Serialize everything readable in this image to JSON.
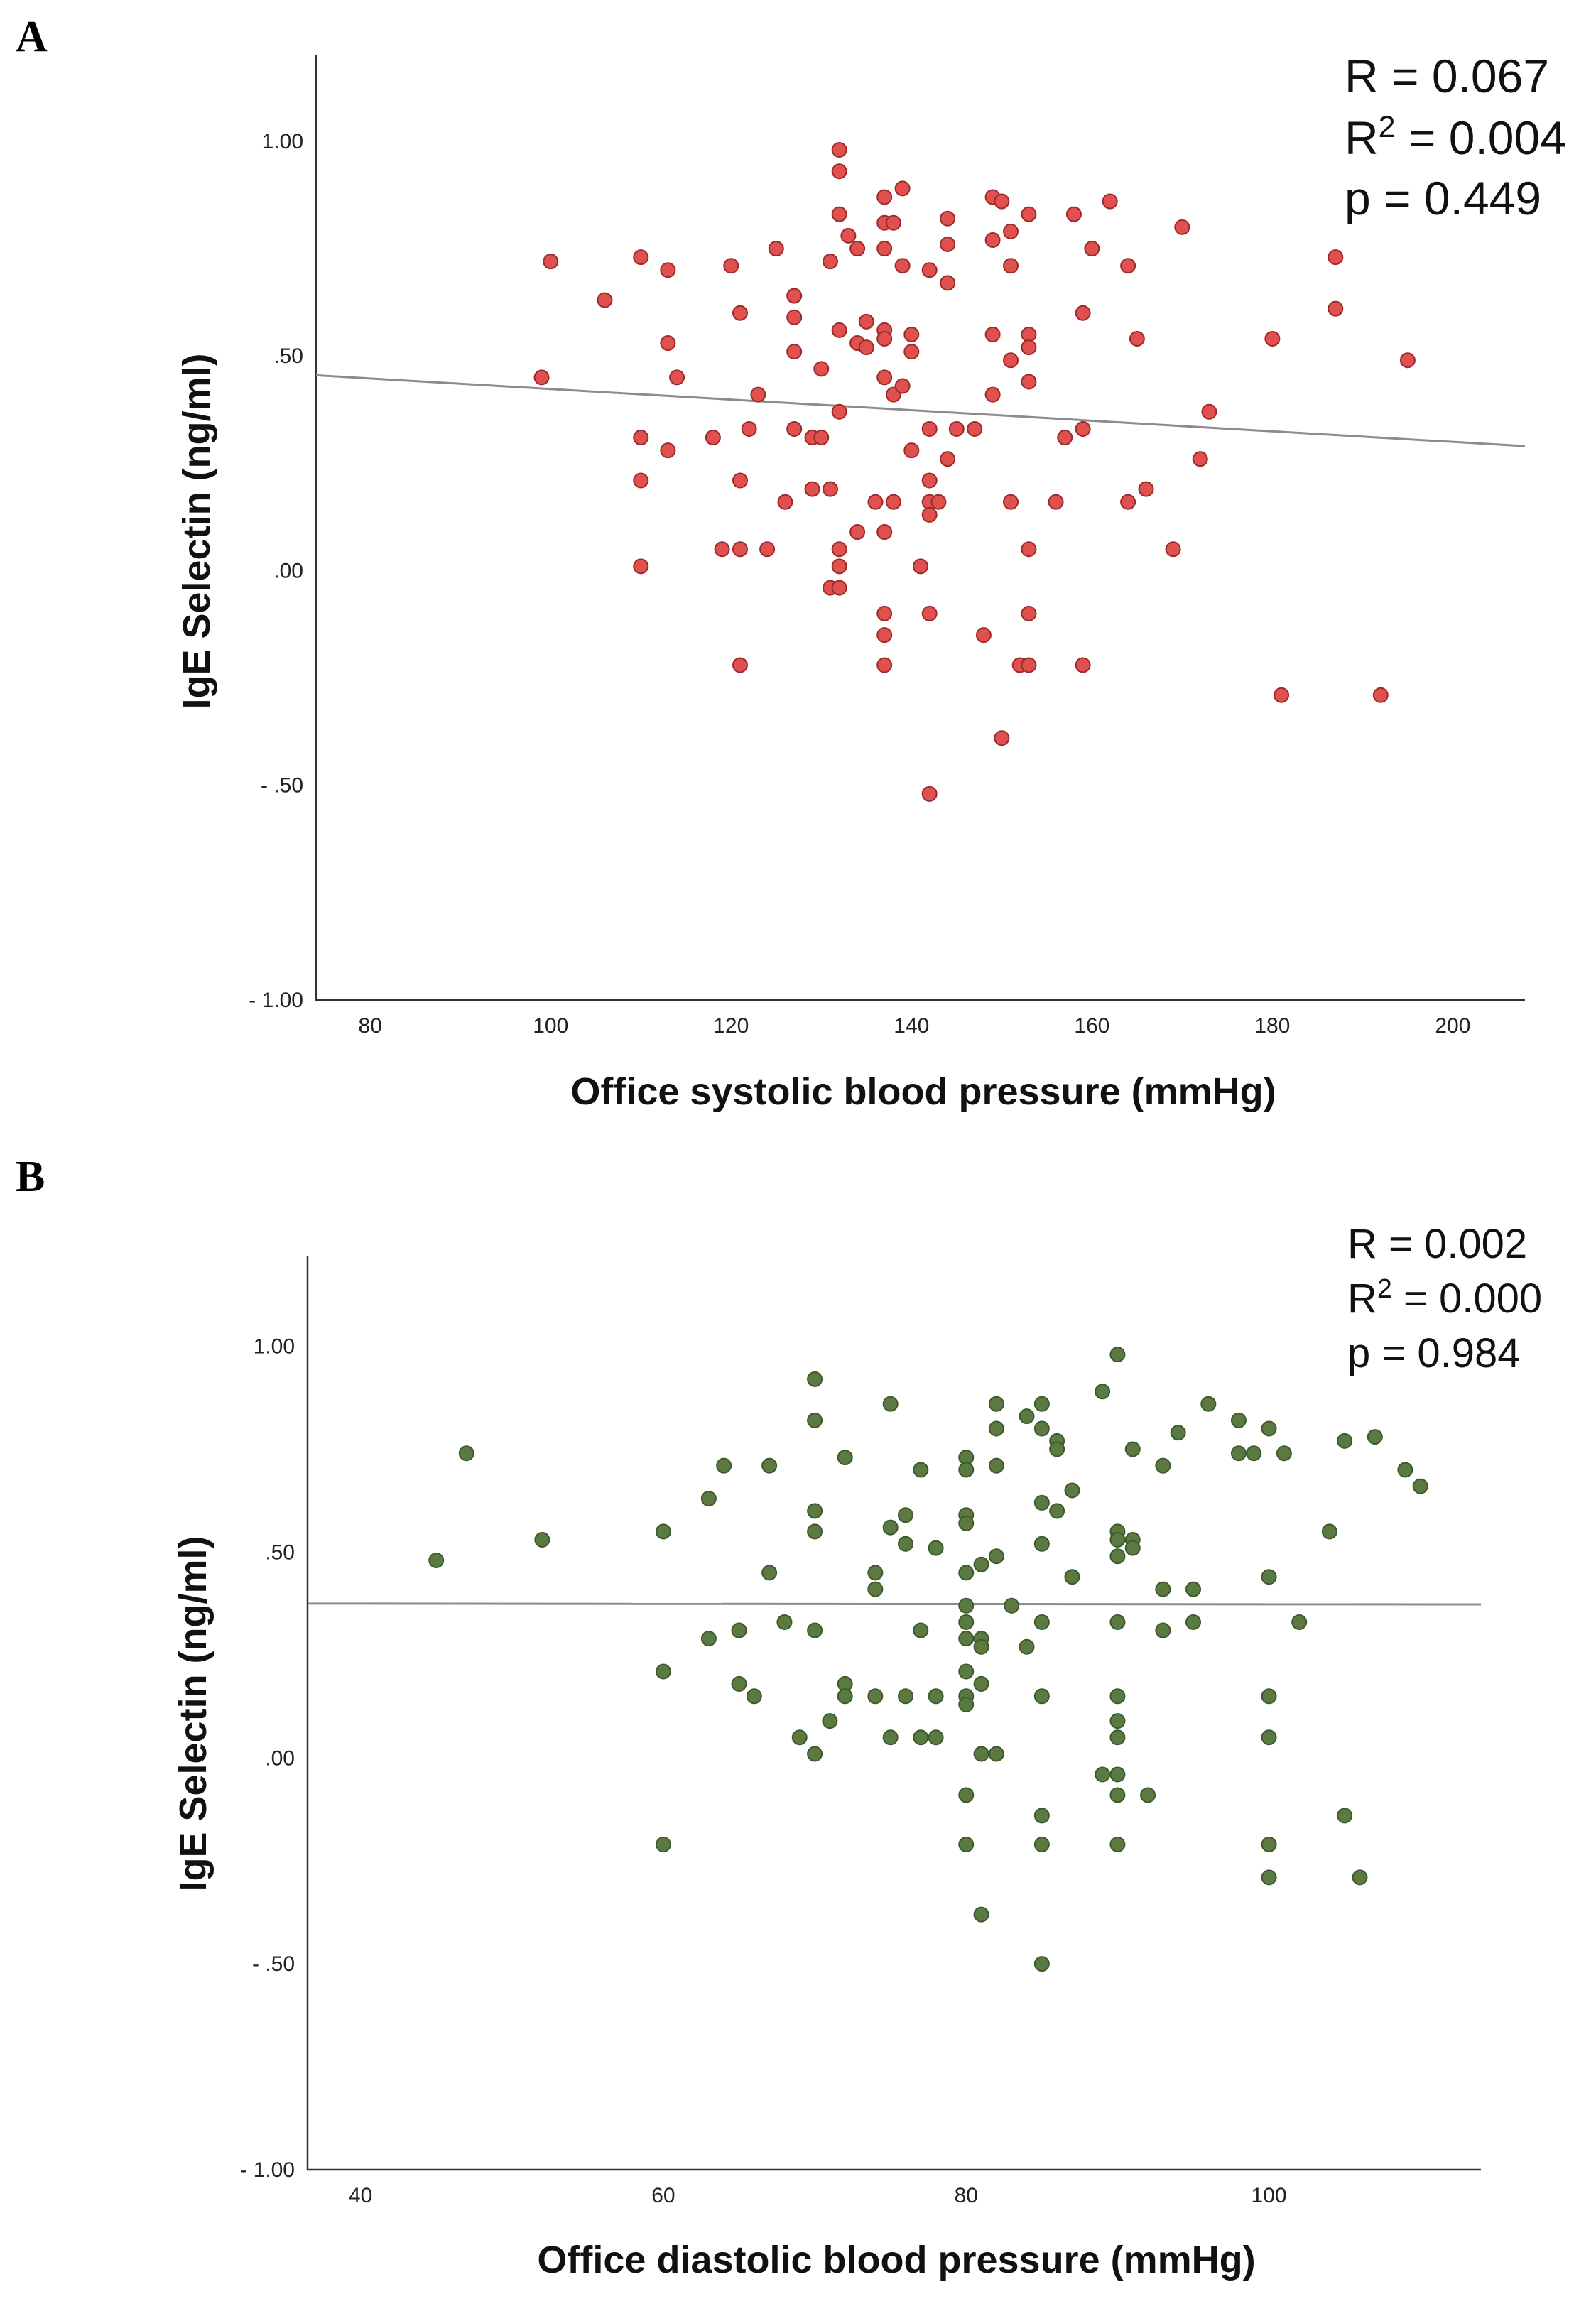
{
  "figure": {
    "panels": [
      "A",
      "B"
    ]
  },
  "chart_data": [
    {
      "type": "scatter",
      "panel": "A",
      "xlabel": "Office systolic blood pressure (mmHg)",
      "ylabel": "IgE Selectin (ng/ml)",
      "xlim": [
        74,
        208
      ],
      "ylim": [
        -1.0,
        1.2
      ],
      "xticks": [
        80,
        100,
        120,
        140,
        160,
        180,
        200
      ],
      "xtick_labels": [
        "80",
        "100",
        "120",
        "140",
        "160",
        "180",
        "200"
      ],
      "yticks": [
        -1.0,
        -0.5,
        0.0,
        0.5,
        1.0
      ],
      "ytick_labels": [
        "- 1.00",
        "- .50",
        ".00",
        ".50",
        "1.00"
      ],
      "stats": [
        "R = 0.067",
        "R² = 0.004",
        "p = 0.449"
      ],
      "fit_line": {
        "x": [
          74,
          208
        ],
        "y": [
          0.455,
          0.29
        ]
      },
      "point_color": "#e0504e",
      "points": [
        [
          99,
          0.45
        ],
        [
          100,
          0.72
        ],
        [
          106,
          0.63
        ],
        [
          110,
          0.73
        ],
        [
          110,
          0.31
        ],
        [
          110,
          0.21
        ],
        [
          110,
          0.01
        ],
        [
          113,
          0.7
        ],
        [
          113,
          0.53
        ],
        [
          113,
          0.28
        ],
        [
          114,
          0.45
        ],
        [
          118,
          0.31
        ],
        [
          119,
          0.05
        ],
        [
          120,
          0.71
        ],
        [
          121,
          0.6
        ],
        [
          121,
          0.21
        ],
        [
          121,
          0.05
        ],
        [
          121,
          -0.22
        ],
        [
          122,
          0.33
        ],
        [
          123,
          0.41
        ],
        [
          124,
          0.05
        ],
        [
          125,
          0.75
        ],
        [
          126,
          0.16
        ],
        [
          127,
          0.64
        ],
        [
          127,
          0.59
        ],
        [
          127,
          0.51
        ],
        [
          127,
          0.33
        ],
        [
          129,
          0.19
        ],
        [
          129,
          0.31
        ],
        [
          130,
          0.31
        ],
        [
          130,
          0.47
        ],
        [
          131,
          0.72
        ],
        [
          131,
          0.19
        ],
        [
          131,
          -0.04
        ],
        [
          132,
          0.98
        ],
        [
          132,
          0.93
        ],
        [
          132,
          0.83
        ],
        [
          132,
          0.56
        ],
        [
          132,
          0.37
        ],
        [
          132,
          0.05
        ],
        [
          132,
          0.01
        ],
        [
          132,
          -0.04
        ],
        [
          133,
          0.78
        ],
        [
          134,
          0.75
        ],
        [
          134,
          0.53
        ],
        [
          134,
          0.09
        ],
        [
          135,
          0.58
        ],
        [
          135,
          0.52
        ],
        [
          136,
          0.16
        ],
        [
          137,
          0.87
        ],
        [
          137,
          0.81
        ],
        [
          137,
          0.75
        ],
        [
          137,
          0.56
        ],
        [
          137,
          0.54
        ],
        [
          137,
          0.45
        ],
        [
          137,
          0.09
        ],
        [
          137,
          -0.1
        ],
        [
          137,
          -0.15
        ],
        [
          137,
          -0.22
        ],
        [
          138,
          0.81
        ],
        [
          138,
          0.41
        ],
        [
          138,
          0.16
        ],
        [
          139,
          0.89
        ],
        [
          139,
          0.71
        ],
        [
          139,
          0.43
        ],
        [
          140,
          0.55
        ],
        [
          140,
          0.51
        ],
        [
          140,
          0.28
        ],
        [
          141,
          0.01
        ],
        [
          142,
          0.7
        ],
        [
          142,
          0.33
        ],
        [
          142,
          0.21
        ],
        [
          142,
          0.16
        ],
        [
          142,
          0.13
        ],
        [
          142,
          -0.1
        ],
        [
          142,
          -0.52
        ],
        [
          143,
          0.16
        ],
        [
          144,
          0.82
        ],
        [
          144,
          0.76
        ],
        [
          144,
          0.67
        ],
        [
          144,
          0.26
        ],
        [
          145,
          0.33
        ],
        [
          147,
          0.33
        ],
        [
          148,
          -0.15
        ],
        [
          149,
          0.87
        ],
        [
          149,
          0.77
        ],
        [
          149,
          0.55
        ],
        [
          149,
          0.41
        ],
        [
          150,
          0.86
        ],
        [
          150,
          -0.39
        ],
        [
          151,
          0.79
        ],
        [
          151,
          0.71
        ],
        [
          151,
          0.49
        ],
        [
          151,
          0.16
        ],
        [
          152,
          -0.22
        ],
        [
          153,
          0.83
        ],
        [
          153,
          0.55
        ],
        [
          153,
          0.52
        ],
        [
          153,
          0.44
        ],
        [
          153,
          0.05
        ],
        [
          153,
          -0.1
        ],
        [
          153,
          -0.22
        ],
        [
          156,
          0.16
        ],
        [
          157,
          0.31
        ],
        [
          158,
          0.83
        ],
        [
          159,
          0.6
        ],
        [
          159,
          0.33
        ],
        [
          159,
          -0.22
        ],
        [
          160,
          0.75
        ],
        [
          162,
          0.86
        ],
        [
          164,
          0.71
        ],
        [
          164,
          0.16
        ],
        [
          165,
          0.54
        ],
        [
          166,
          0.19
        ],
        [
          169,
          0.05
        ],
        [
          170,
          0.8
        ],
        [
          172,
          0.26
        ],
        [
          173,
          0.37
        ],
        [
          180,
          0.54
        ],
        [
          181,
          -0.29
        ],
        [
          187,
          0.73
        ],
        [
          187,
          0.61
        ],
        [
          192,
          -0.29
        ],
        [
          195,
          0.49
        ]
      ]
    },
    {
      "type": "scatter",
      "panel": "B",
      "xlabel": "Office diastolic blood pressure (mmHg)",
      "ylabel": "IgE Selectin (ng/ml)",
      "xlim": [
        36.5,
        114
      ],
      "ylim": [
        -1.0,
        1.22
      ],
      "xticks": [
        40,
        60,
        80,
        100
      ],
      "xtick_labels": [
        "40",
        "60",
        "80",
        "100"
      ],
      "yticks": [
        -1.0,
        -0.5,
        0.0,
        0.5,
        1.0
      ],
      "ytick_labels": [
        "- 1.00",
        "- .50",
        ".00",
        ".50",
        "1.00"
      ],
      "stats": [
        "R = 0.002",
        "R² = 0.000",
        "p = 0.984"
      ],
      "fit_line": {
        "x": [
          36.5,
          114
        ],
        "y": [
          0.375,
          0.373
        ]
      },
      "point_color": "#5a7a42",
      "points": [
        [
          45,
          0.48
        ],
        [
          47,
          0.74
        ],
        [
          52,
          0.53
        ],
        [
          60,
          0.55
        ],
        [
          60,
          0.21
        ],
        [
          60,
          -0.21
        ],
        [
          63,
          0.63
        ],
        [
          63,
          0.29
        ],
        [
          64,
          0.71
        ],
        [
          65,
          0.31
        ],
        [
          65,
          0.18
        ],
        [
          66,
          0.15
        ],
        [
          67,
          0.71
        ],
        [
          67,
          0.45
        ],
        [
          68,
          0.33
        ],
        [
          69,
          0.05
        ],
        [
          70,
          0.92
        ],
        [
          70,
          0.82
        ],
        [
          70,
          0.6
        ],
        [
          70,
          0.55
        ],
        [
          70,
          0.31
        ],
        [
          70,
          0.01
        ],
        [
          71,
          0.09
        ],
        [
          72,
          0.73
        ],
        [
          72,
          0.18
        ],
        [
          72,
          0.15
        ],
        [
          74,
          0.15
        ],
        [
          74,
          0.45
        ],
        [
          74,
          0.41
        ],
        [
          75,
          0.86
        ],
        [
          75,
          0.56
        ],
        [
          75,
          0.05
        ],
        [
          76,
          0.59
        ],
        [
          76,
          0.52
        ],
        [
          76,
          0.15
        ],
        [
          77,
          0.7
        ],
        [
          77,
          0.31
        ],
        [
          77,
          0.05
        ],
        [
          78,
          0.51
        ],
        [
          78,
          0.15
        ],
        [
          78,
          0.05
        ],
        [
          80,
          0.73
        ],
        [
          80,
          0.7
        ],
        [
          80,
          0.59
        ],
        [
          80,
          0.57
        ],
        [
          80,
          0.45
        ],
        [
          80,
          0.37
        ],
        [
          80,
          0.33
        ],
        [
          80,
          0.29
        ],
        [
          80,
          0.21
        ],
        [
          80,
          0.15
        ],
        [
          80,
          0.13
        ],
        [
          80,
          -0.09
        ],
        [
          80,
          -0.21
        ],
        [
          81,
          0.47
        ],
        [
          81,
          0.29
        ],
        [
          81,
          0.27
        ],
        [
          81,
          0.18
        ],
        [
          81,
          0.01
        ],
        [
          81,
          -0.38
        ],
        [
          82,
          0.86
        ],
        [
          82,
          0.8
        ],
        [
          82,
          0.71
        ],
        [
          82,
          0.49
        ],
        [
          82,
          0.01
        ],
        [
          83,
          0.37
        ],
        [
          84,
          0.83
        ],
        [
          84,
          0.27
        ],
        [
          85,
          0.86
        ],
        [
          85,
          0.8
        ],
        [
          85,
          0.62
        ],
        [
          85,
          0.52
        ],
        [
          85,
          0.33
        ],
        [
          85,
          0.15
        ],
        [
          85,
          -0.14
        ],
        [
          85,
          -0.21
        ],
        [
          85,
          -0.5
        ],
        [
          86,
          0.77
        ],
        [
          86,
          0.75
        ],
        [
          86,
          0.6
        ],
        [
          87,
          0.65
        ],
        [
          87,
          0.44
        ],
        [
          89,
          0.89
        ],
        [
          89,
          -0.04
        ],
        [
          90,
          0.98
        ],
        [
          90,
          0.55
        ],
        [
          90,
          0.53
        ],
        [
          90,
          0.49
        ],
        [
          90,
          0.33
        ],
        [
          90,
          0.15
        ],
        [
          90,
          0.09
        ],
        [
          90,
          0.05
        ],
        [
          90,
          -0.04
        ],
        [
          90,
          -0.09
        ],
        [
          90,
          -0.21
        ],
        [
          91,
          0.75
        ],
        [
          91,
          0.53
        ],
        [
          91,
          0.51
        ],
        [
          92,
          -0.09
        ],
        [
          93,
          0.71
        ],
        [
          93,
          0.41
        ],
        [
          93,
          0.31
        ],
        [
          94,
          0.79
        ],
        [
          95,
          0.41
        ],
        [
          95,
          0.33
        ],
        [
          96,
          0.86
        ],
        [
          98,
          0.82
        ],
        [
          98,
          0.74
        ],
        [
          99,
          0.74
        ],
        [
          100,
          0.8
        ],
        [
          100,
          0.44
        ],
        [
          100,
          0.15
        ],
        [
          100,
          0.05
        ],
        [
          100,
          -0.21
        ],
        [
          100,
          -0.29
        ],
        [
          101,
          0.74
        ],
        [
          102,
          0.33
        ],
        [
          104,
          0.55
        ],
        [
          105,
          0.77
        ],
        [
          105,
          -0.14
        ],
        [
          106,
          -0.29
        ],
        [
          107,
          0.78
        ],
        [
          109,
          0.7
        ],
        [
          110,
          0.66
        ]
      ]
    }
  ]
}
